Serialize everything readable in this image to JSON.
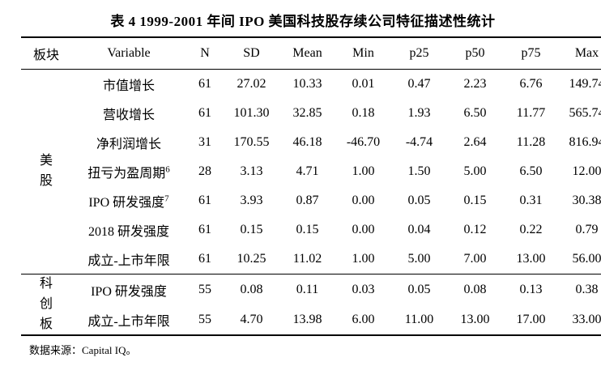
{
  "title": "表 4 1999-2001 年间 IPO 美国科技股存续公司特征描述性统计",
  "source_note": "数据来源：Capital IQ。",
  "table": {
    "headers": [
      "板块",
      "Variable",
      "N",
      "SD",
      "Mean",
      "Min",
      "p25",
      "p50",
      "p75",
      "Max"
    ],
    "groups": [
      {
        "sector": "美股",
        "rows": [
          {
            "variable": "市值增长",
            "sup": "",
            "values": [
              "61",
              "27.02",
              "10.33",
              "0.01",
              "0.47",
              "2.23",
              "6.76",
              "149.74"
            ]
          },
          {
            "variable": "营收增长",
            "sup": "",
            "values": [
              "61",
              "101.30",
              "32.85",
              "0.18",
              "1.93",
              "6.50",
              "11.77",
              "565.74"
            ]
          },
          {
            "variable": "净利润增长",
            "sup": "",
            "values": [
              "31",
              "170.55",
              "46.18",
              "-46.70",
              "-4.74",
              "2.64",
              "11.28",
              "816.94"
            ]
          },
          {
            "variable": "扭亏为盈周期",
            "sup": "6",
            "values": [
              "28",
              "3.13",
              "4.71",
              "1.00",
              "1.50",
              "5.00",
              "6.50",
              "12.00"
            ]
          },
          {
            "variable": "IPO 研发强度",
            "sup": "7",
            "values": [
              "61",
              "3.93",
              "0.87",
              "0.00",
              "0.05",
              "0.15",
              "0.31",
              "30.38"
            ]
          },
          {
            "variable": "2018 研发强度",
            "sup": "",
            "values": [
              "61",
              "0.15",
              "0.15",
              "0.00",
              "0.04",
              "0.12",
              "0.22",
              "0.79"
            ]
          },
          {
            "variable": "成立-上市年限",
            "sup": "",
            "values": [
              "61",
              "10.25",
              "11.02",
              "1.00",
              "5.00",
              "7.00",
              "13.00",
              "56.00"
            ]
          }
        ]
      },
      {
        "sector": "科创板",
        "rows": [
          {
            "variable": "IPO 研发强度",
            "sup": "",
            "values": [
              "55",
              "0.08",
              "0.11",
              "0.03",
              "0.05",
              "0.08",
              "0.13",
              "0.38"
            ]
          },
          {
            "variable": "成立-上市年限",
            "sup": "",
            "values": [
              "55",
              "4.70",
              "13.98",
              "6.00",
              "11.00",
              "13.00",
              "17.00",
              "33.00"
            ]
          }
        ]
      }
    ]
  }
}
